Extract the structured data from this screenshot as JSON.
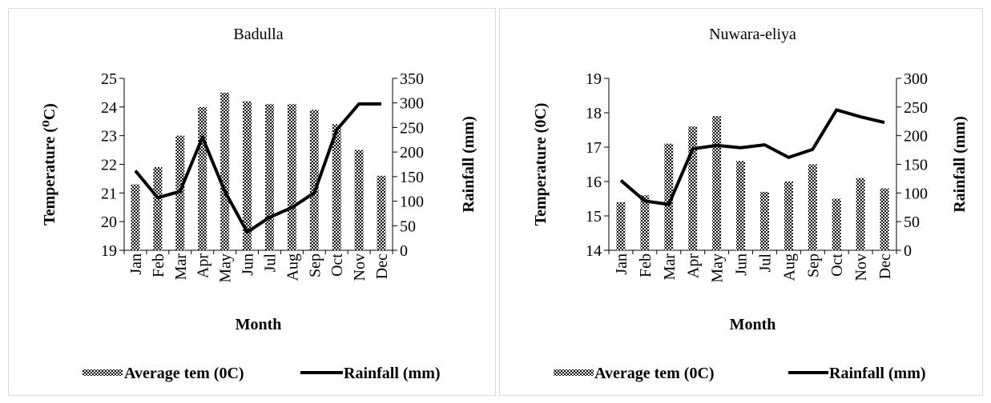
{
  "chart_data": [
    {
      "type": "bar+line",
      "title": "Badulla",
      "xlabel": "Month",
      "ylabel": "Temperature (⁰C)",
      "y2label": "Rainfall (mm)",
      "categories": [
        "Jan",
        "Feb",
        "Mar",
        "Apr",
        "May",
        "Jun",
        "Jul",
        "Aug",
        "Sep",
        "Oct",
        "Nov",
        "Dec"
      ],
      "ylim": [
        19,
        25
      ],
      "yticks": [
        "19",
        "20",
        "21",
        "22",
        "23",
        "24",
        "25"
      ],
      "y2lim": [
        0,
        350
      ],
      "y2ticks": [
        "0",
        "50",
        "100",
        "150",
        "200",
        "250",
        "300",
        "350"
      ],
      "series": [
        {
          "name": "Average tem (0C)",
          "type": "bar",
          "axis": "left",
          "values": [
            21.3,
            21.9,
            23.0,
            24.0,
            24.5,
            24.2,
            24.1,
            24.1,
            23.9,
            23.4,
            22.5,
            21.6
          ]
        },
        {
          "name": "Rainfall (mm)",
          "type": "line",
          "axis": "right",
          "values": [
            162,
            107,
            120,
            230,
            120,
            37,
            67,
            87,
            117,
            245,
            298,
            298
          ]
        }
      ],
      "legend": "bottom"
    },
    {
      "type": "bar+line",
      "title": "Nuwara-eliya",
      "xlabel": "Month",
      "ylabel": "Temperature (0C)",
      "y2label": "Rainfall (mm)",
      "categories": [
        "Jan",
        "Feb",
        "Mar",
        "Apr",
        "May",
        "Jun",
        "Jul",
        "Aug",
        "Sep",
        "Oct",
        "Nov",
        "Dec"
      ],
      "ylim": [
        14,
        19
      ],
      "yticks": [
        "14",
        "15",
        "16",
        "17",
        "18",
        "19"
      ],
      "y2lim": [
        0,
        300
      ],
      "y2ticks": [
        "0",
        "50",
        "100",
        "150",
        "200",
        "250",
        "300"
      ],
      "series": [
        {
          "name": "Average tem (0C)",
          "type": "bar",
          "axis": "left",
          "values": [
            15.4,
            15.6,
            17.1,
            17.6,
            17.9,
            16.6,
            15.7,
            16.0,
            16.5,
            15.5,
            16.1,
            15.8
          ]
        },
        {
          "name": "Rainfall (mm)",
          "type": "line",
          "axis": "right",
          "values": [
            122,
            86,
            80,
            177,
            183,
            179,
            184,
            162,
            176,
            245,
            233,
            223
          ]
        }
      ],
      "legend": "bottom"
    }
  ]
}
